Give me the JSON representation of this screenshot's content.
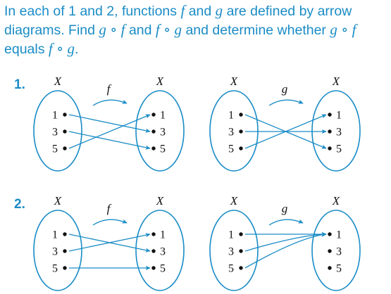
{
  "heading": {
    "p1": "In each of 1 and 2, functions ",
    "f": "f",
    "p2": " and ",
    "g": "g",
    "p3": " are defined by arrow diagrams. Find ",
    "gof": "g ∘ f",
    "p4": " and ",
    "fog": "f ∘ g",
    "p5": " and determine whether ",
    "gof2": "g ∘ f",
    "p6": " equals ",
    "fog2": "f ∘ g",
    "p7": "."
  },
  "problems": [
    {
      "number": "1.",
      "diagrams": [
        {
          "name": "f",
          "domain_label": "X",
          "codomain_label": "X",
          "domain": [
            "1",
            "3",
            "5"
          ],
          "codomain": [
            "1",
            "3",
            "5"
          ],
          "mapping": [
            [
              "1",
              "3"
            ],
            [
              "3",
              "5"
            ],
            [
              "5",
              "1"
            ]
          ]
        },
        {
          "name": "g",
          "domain_label": "X",
          "codomain_label": "X",
          "domain": [
            "1",
            "3",
            "5"
          ],
          "codomain": [
            "1",
            "3",
            "5"
          ],
          "mapping": [
            [
              "1",
              "5"
            ],
            [
              "3",
              "3"
            ],
            [
              "5",
              "1"
            ]
          ]
        }
      ]
    },
    {
      "number": "2.",
      "diagrams": [
        {
          "name": "f",
          "domain_label": "X",
          "codomain_label": "X",
          "domain": [
            "1",
            "3",
            "5"
          ],
          "codomain": [
            "1",
            "3",
            "5"
          ],
          "mapping": [
            [
              "1",
              "3"
            ],
            [
              "3",
              "1"
            ],
            [
              "5",
              "5"
            ]
          ]
        },
        {
          "name": "g",
          "domain_label": "X",
          "codomain_label": "X",
          "domain": [
            "1",
            "3",
            "5"
          ],
          "codomain": [
            "1",
            "3",
            "5"
          ],
          "mapping": [
            [
              "1",
              "1"
            ],
            [
              "3",
              "1"
            ],
            [
              "5",
              "1"
            ]
          ]
        }
      ]
    }
  ],
  "colors": {
    "accent": "#1a8cc6",
    "text": "#111111"
  }
}
